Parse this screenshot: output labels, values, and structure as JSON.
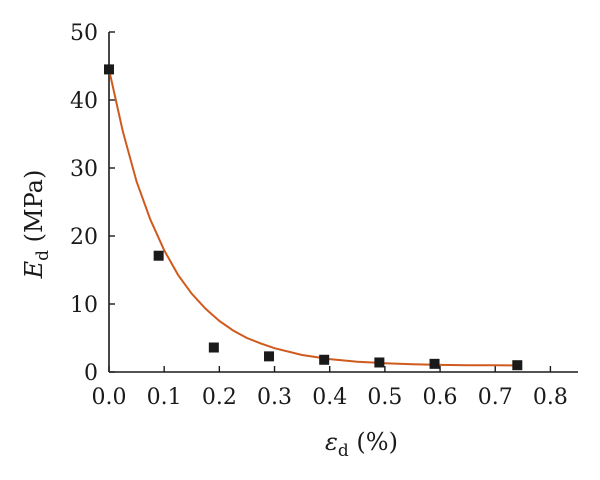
{
  "chart_data": {
    "type": "scatter",
    "xlabel": {
      "symbol": "ε",
      "sub": "d",
      "unit": " (%)"
    },
    "ylabel": {
      "symbol": "E",
      "sub": "d",
      "unit": " (MPa)"
    },
    "xlim": [
      0,
      0.85
    ],
    "ylim": [
      0,
      50
    ],
    "x_ticks": [
      0.0,
      0.1,
      0.2,
      0.3,
      0.4,
      0.5,
      0.6,
      0.7,
      0.8
    ],
    "x_tick_labels": [
      "0.0",
      "0.1",
      "0.2",
      "0.3",
      "0.4",
      "0.5",
      "0.6",
      "0.7",
      "0.8"
    ],
    "y_ticks": [
      0,
      10,
      20,
      30,
      40,
      50
    ],
    "y_tick_labels": [
      "0",
      "10",
      "20",
      "30",
      "40",
      "50"
    ],
    "grid": false,
    "series": [
      {
        "kind": "scatter",
        "marker": "square",
        "color": "#1a1a1a",
        "x": [
          0.0,
          0.09,
          0.19,
          0.29,
          0.39,
          0.49,
          0.59,
          0.74
        ],
        "y": [
          44.5,
          17.1,
          3.6,
          2.3,
          1.8,
          1.4,
          1.2,
          1.0
        ]
      },
      {
        "kind": "fit-line",
        "color": "#d05a1e",
        "x": [
          0.0,
          0.025,
          0.05,
          0.075,
          0.1,
          0.125,
          0.15,
          0.175,
          0.2,
          0.225,
          0.25,
          0.275,
          0.3,
          0.35,
          0.4,
          0.45,
          0.5,
          0.55,
          0.6,
          0.65,
          0.7,
          0.745
        ],
        "y": [
          44.5,
          35.4,
          28.0,
          22.4,
          17.9,
          14.3,
          11.5,
          9.3,
          7.5,
          6.1,
          5.0,
          4.2,
          3.5,
          2.5,
          1.9,
          1.5,
          1.3,
          1.15,
          1.05,
          1.0,
          0.98,
          0.97
        ]
      }
    ]
  }
}
